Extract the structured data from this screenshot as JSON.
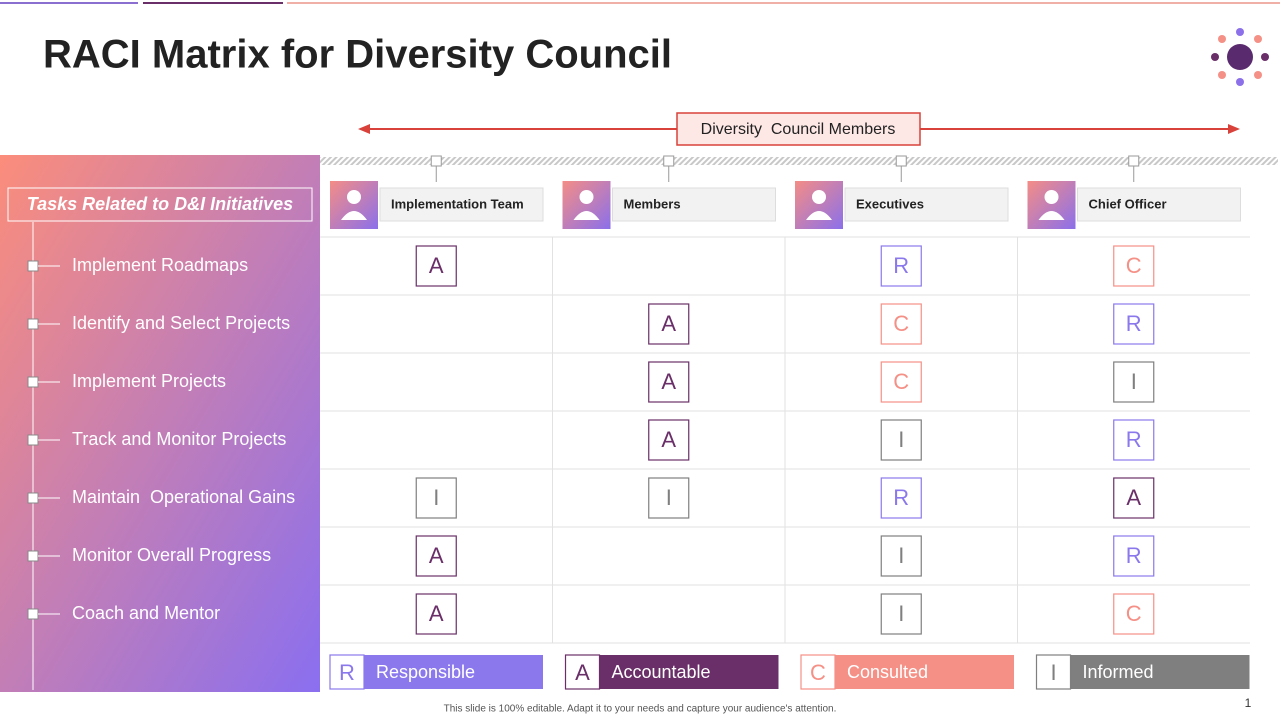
{
  "title": "RACI Matrix for Diversity Council",
  "header_label": "Diversity  Council Members",
  "tasks_heading": "Tasks Related to D&I Initiatives",
  "tasks": [
    "Implement Roadmaps",
    "Identify and Select Projects",
    "Implement Projects",
    "Track and Monitor Projects",
    "Maintain  Operational Gains",
    "Monitor Overall Progress",
    "Coach and Mentor"
  ],
  "columns": [
    "Implementation Team",
    "Members",
    "Executives",
    "Chief Officer"
  ],
  "matrix": [
    [
      "A",
      null,
      "R",
      "C"
    ],
    [
      null,
      "A",
      "C",
      "R"
    ],
    [
      null,
      "A",
      "C",
      "I"
    ],
    [
      null,
      "A",
      "I",
      "R"
    ],
    [
      "I",
      "I",
      "R",
      "A"
    ],
    [
      "A",
      null,
      "I",
      "R"
    ],
    [
      "A",
      null,
      "I",
      "C"
    ]
  ],
  "legend": [
    {
      "letter": "R",
      "label": "Responsible",
      "color": "#8b78ec"
    },
    {
      "letter": "A",
      "label": "Accountable",
      "color": "#6a2f68"
    },
    {
      "letter": "C",
      "label": "Consulted",
      "color": "#f59086"
    },
    {
      "letter": "I",
      "label": "Informed",
      "color": "#7f7f7f"
    }
  ],
  "footer": "This slide is 100% editable. Adapt it to your needs and capture your audience's attention.",
  "page_number": "1"
}
